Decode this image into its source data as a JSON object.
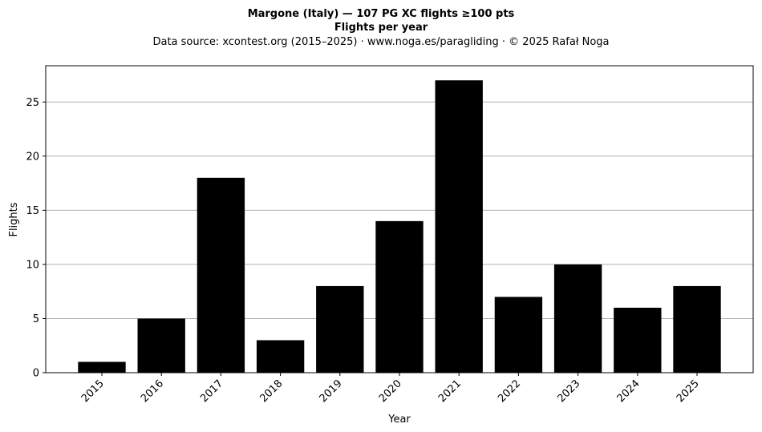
{
  "chart_data": {
    "type": "bar",
    "title": "Margone (Italy)  —  107 PG XC flights ≥100 pts",
    "subtitle": "Flights per year",
    "source": "Data source: xcontest.org (2015–2025)  ·  www.noga.es/paragliding  ·  © 2025 Rafał Noga",
    "xlabel": "Year",
    "ylabel": "Flights",
    "categories": [
      "2015",
      "2016",
      "2017",
      "2018",
      "2019",
      "2020",
      "2021",
      "2022",
      "2023",
      "2024",
      "2025"
    ],
    "values": [
      1,
      5,
      18,
      3,
      8,
      14,
      27,
      7,
      10,
      6,
      8
    ],
    "ylim": [
      0,
      28.35
    ],
    "yticks": [
      0,
      5,
      10,
      15,
      20,
      25
    ],
    "grid": "y",
    "legend": "none",
    "bar_color": "#000000",
    "grid_color": "#b0b0b0"
  }
}
